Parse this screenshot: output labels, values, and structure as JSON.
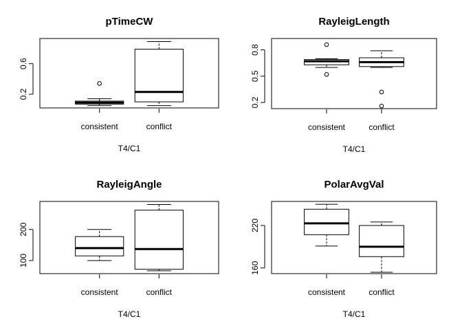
{
  "chart_data": [
    {
      "type": "boxplot",
      "title": "pTimeCW",
      "xlabel": "T4/C1",
      "categories": [
        "consistent",
        "conflict"
      ],
      "ylim": [
        0.02,
        0.93
      ],
      "yticks": [
        0.2,
        0.6
      ],
      "boxes": [
        {
          "min": 0.05,
          "q1": 0.07,
          "median": 0.09,
          "q3": 0.11,
          "max": 0.14,
          "outliers": [
            0.34
          ]
        },
        {
          "min": 0.05,
          "q1": 0.1,
          "median": 0.23,
          "q3": 0.79,
          "max": 0.89,
          "outliers": []
        }
      ]
    },
    {
      "type": "boxplot",
      "title": "RayleigLength",
      "xlabel": "T4/C1",
      "categories": [
        "consistent",
        "conflict"
      ],
      "ylim": [
        0.13,
        0.93
      ],
      "yticks": [
        0.2,
        0.5,
        0.8
      ],
      "boxes": [
        {
          "min": 0.6,
          "q1": 0.63,
          "median": 0.67,
          "q3": 0.69,
          "max": 0.7,
          "outliers": [
            0.86,
            0.52
          ]
        },
        {
          "min": 0.6,
          "q1": 0.61,
          "median": 0.66,
          "q3": 0.71,
          "max": 0.79,
          "outliers": [
            0.32,
            0.16
          ]
        }
      ]
    },
    {
      "type": "boxplot",
      "title": "RayleigAngle",
      "xlabel": "T4/C1",
      "categories": [
        "consistent",
        "conflict"
      ],
      "ylim": [
        58,
        290
      ],
      "yticks": [
        100,
        200
      ],
      "boxes": [
        {
          "min": 100,
          "q1": 115,
          "median": 140,
          "q3": 177,
          "max": 200,
          "outliers": []
        },
        {
          "min": 67,
          "q1": 72,
          "median": 137,
          "q3": 262,
          "max": 280,
          "outliers": []
        }
      ]
    },
    {
      "type": "boxplot",
      "title": "PolarAvgVal",
      "xlabel": "T4/C1",
      "categories": [
        "consistent",
        "conflict"
      ],
      "ylim": [
        152,
        254
      ],
      "yticks": [
        160,
        220
      ],
      "boxes": [
        {
          "min": 191,
          "q1": 207,
          "median": 223,
          "q3": 243,
          "max": 250,
          "outliers": []
        },
        {
          "min": 154,
          "q1": 176,
          "median": 190,
          "q3": 220,
          "max": 225,
          "outliers": []
        }
      ]
    }
  ]
}
